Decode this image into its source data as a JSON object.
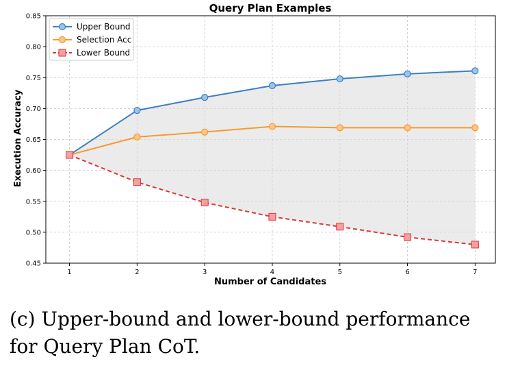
{
  "chart_data": {
    "type": "line",
    "title": "Query Plan Examples",
    "xlabel": "Number of Candidates",
    "ylabel": "Execution Accuracy",
    "x": [
      1,
      2,
      3,
      4,
      5,
      6,
      7
    ],
    "xlim": [
      0.65,
      7.3
    ],
    "ylim": [
      0.45,
      0.85
    ],
    "yticks": [
      "0.45",
      "0.50",
      "0.55",
      "0.60",
      "0.65",
      "0.70",
      "0.75",
      "0.80",
      "0.85"
    ],
    "xticks": [
      "1",
      "2",
      "3",
      "4",
      "5",
      "6",
      "7"
    ],
    "grid": true,
    "legend_position": "top-left",
    "shaded_region": "between Upper Bound and Lower Bound",
    "series": [
      {
        "name": "Upper Bound",
        "values": [
          0.625,
          0.697,
          0.718,
          0.737,
          0.748,
          0.756,
          0.761
        ],
        "color": "#3b7fc4",
        "marker": "circle",
        "style": "solid"
      },
      {
        "name": "Selection Acc",
        "values": [
          0.625,
          0.654,
          0.662,
          0.671,
          0.669,
          0.669,
          0.669
        ],
        "color": "#f59a2f",
        "marker": "circle",
        "style": "solid"
      },
      {
        "name": "Lower Bound",
        "values": [
          0.625,
          0.581,
          0.548,
          0.525,
          0.509,
          0.492,
          0.48
        ],
        "color": "#d9373b",
        "marker": "square",
        "style": "dashed"
      }
    ]
  },
  "caption": {
    "line1": "(c) Upper-bound and lower-bound performance",
    "line2": "for Query Plan CoT."
  }
}
